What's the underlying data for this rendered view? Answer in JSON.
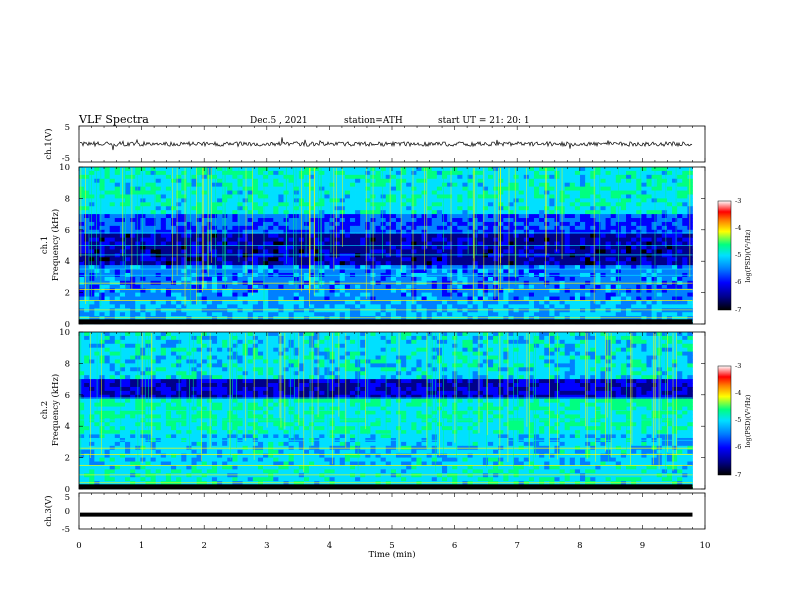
{
  "header": {
    "title": "VLF  Spectra",
    "date": "Dec.5  , 2021",
    "station": "station=ATH",
    "start": "start  UT  =   21: 20: 1"
  },
  "chart_data": [
    {
      "type": "line",
      "panel": "ch1-waveform",
      "ylabel": "ch.1(V)",
      "ylim": [
        -5,
        5
      ],
      "yticks": [
        "5",
        "-5"
      ],
      "xlim": [
        0,
        10
      ],
      "note_level_volts": 0,
      "data_end_min": 9.8
    },
    {
      "type": "heatmap",
      "panel": "ch1-spectrogram",
      "ylabel_line1": "ch.1",
      "ylabel_line2": "Frequency  (kHz)",
      "ylim": [
        0,
        10
      ],
      "yticks": [
        "0",
        "2",
        "4",
        "6",
        "8",
        "10"
      ],
      "xlim": [
        0,
        10
      ],
      "data_end_min": 9.8,
      "colorbar": {
        "label": "log(PSD)(V²/Hz)",
        "range": [
          -7,
          -3
        ],
        "ticks": [
          "-3",
          "-4",
          "-5",
          "-6",
          "-7"
        ]
      }
    },
    {
      "type": "heatmap",
      "panel": "ch2-spectrogram",
      "ylabel_line1": "ch.2",
      "ylabel_line2": "Frequency  (kHz)",
      "ylim": [
        0,
        10
      ],
      "yticks": [
        "0",
        "2",
        "4",
        "6",
        "8",
        "10"
      ],
      "xlim": [
        0,
        10
      ],
      "data_end_min": 9.8,
      "colorbar": {
        "label": "log(PSD)(V²/Hz)",
        "range": [
          -7,
          -3
        ],
        "ticks": [
          "-3",
          "-4",
          "-5",
          "-6",
          "-7"
        ]
      }
    },
    {
      "type": "line",
      "panel": "ch3-waveform",
      "ylabel": "ch.3(V)",
      "ylim": [
        -5,
        5
      ],
      "yticks": [
        "5",
        "0",
        "-5"
      ],
      "xlim": [
        0,
        10
      ],
      "level_volts": -1,
      "data_end_min": 9.8
    }
  ],
  "xaxis": {
    "label": "Time  (min)",
    "ticks": [
      "0",
      "1",
      "2",
      "3",
      "4",
      "5",
      "6",
      "7",
      "8",
      "9",
      "10"
    ],
    "range": [
      0,
      10
    ]
  },
  "colors": {
    "spectrogram": [
      "#000000",
      "#00008a",
      "#0000ff",
      "#0080ff",
      "#00e0ff",
      "#00ff80",
      "#ffff00",
      "#ff8000",
      "#ff0000",
      "#ffffff"
    ]
  }
}
